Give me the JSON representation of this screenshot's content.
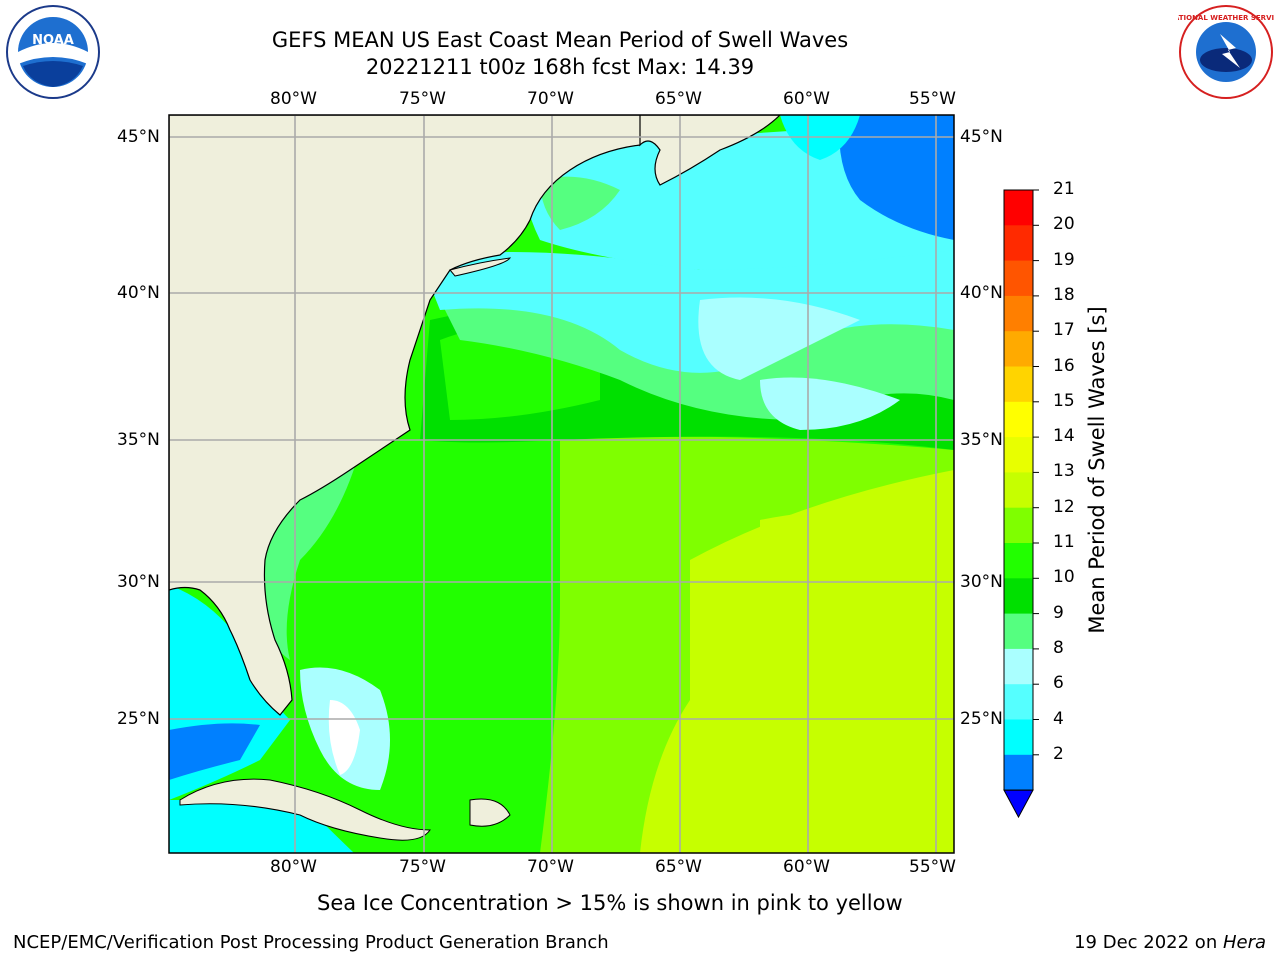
{
  "title": {
    "line1": "GEFS MEAN US East Coast Mean Period of Swell Waves",
    "line2": "20221211 t00z 168h fcst   Max: 14.39"
  },
  "map": {
    "lat_labels": [
      "45°N",
      "40°N",
      "35°N",
      "30°N",
      "25°N"
    ],
    "lon_labels": [
      "80°W",
      "75°W",
      "70°W",
      "65°W",
      "60°W",
      "55°W"
    ]
  },
  "colorbar": {
    "label": "Mean Period of Swell Waves [s]",
    "ticks": [
      "21",
      "20",
      "19",
      "18",
      "17",
      "16",
      "15",
      "14",
      "13",
      "12",
      "11",
      "10",
      "9",
      "8",
      "6",
      "4",
      "2"
    ],
    "colors": [
      "#ff0000",
      "#ff2a00",
      "#ff5500",
      "#ff7f00",
      "#ffaa00",
      "#ffd400",
      "#ffff00",
      "#e8ff00",
      "#c6ff00",
      "#7fff00",
      "#22ff00",
      "#00e000",
      "#55ff80",
      "#aaffff",
      "#55ffff",
      "#00ffff",
      "#0080ff"
    ],
    "under_color": "#0000ff"
  },
  "note": "Sea Ice Concentration > 15% is shown in pink to yellow",
  "footer": {
    "left": "NCEP/EMC/Verification Post Processing Product Generation Branch",
    "right_date": "19 Dec 2022 on ",
    "right_host": "Hera"
  },
  "logos": {
    "noaa": "NOAA",
    "nws": "NATIONAL WEATHER SERVICE"
  }
}
